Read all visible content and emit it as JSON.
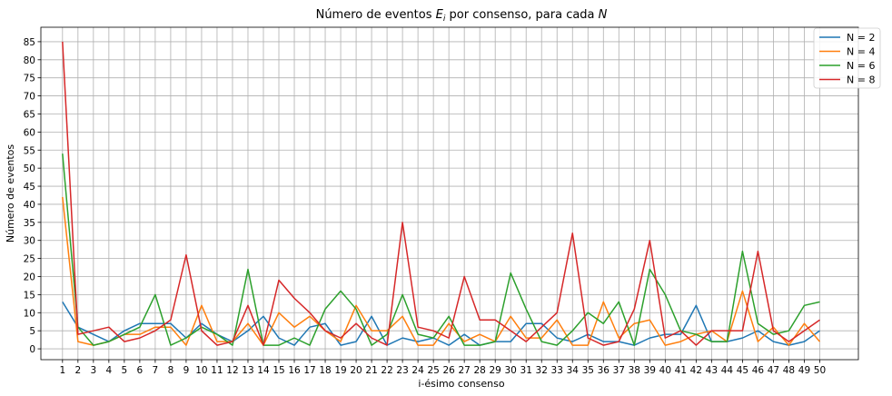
{
  "chart_data": {
    "type": "line",
    "title_parts": [
      "Número de eventos ",
      "E",
      "i",
      " por consenso, para cada ",
      "N"
    ],
    "xlabel": "i-ésimo consenso",
    "ylabel": "Número de eventos",
    "x": [
      1,
      2,
      3,
      4,
      5,
      6,
      7,
      8,
      9,
      10,
      11,
      12,
      13,
      14,
      15,
      16,
      17,
      18,
      19,
      20,
      21,
      22,
      23,
      24,
      25,
      26,
      27,
      28,
      29,
      30,
      31,
      32,
      33,
      34,
      35,
      36,
      37,
      38,
      39,
      40,
      41,
      42,
      43,
      44,
      45,
      46,
      47,
      48,
      49,
      50
    ],
    "xlim": [
      -0.4,
      52.5
    ],
    "ylim": [
      -3,
      89
    ],
    "yticks": [
      0,
      5,
      10,
      15,
      20,
      25,
      30,
      35,
      40,
      45,
      50,
      55,
      60,
      65,
      70,
      75,
      80,
      85
    ],
    "grid": true,
    "legend_position": "top-right",
    "series": [
      {
        "name": "N = 2",
        "color": "#1f77b4",
        "values": [
          13,
          6,
          4,
          2,
          5,
          7,
          7,
          7,
          3,
          7,
          4,
          2,
          5,
          9,
          3,
          1,
          6,
          7,
          1,
          2,
          9,
          1,
          3,
          2,
          3,
          1,
          4,
          1,
          2,
          2,
          7,
          7,
          3,
          2,
          4,
          2,
          2,
          1,
          3,
          4,
          4,
          12,
          2,
          2,
          3,
          5,
          2,
          1,
          2,
          5
        ]
      },
      {
        "name": "N = 4",
        "color": "#ff7f0e",
        "values": [
          42,
          2,
          1,
          2,
          4,
          4,
          6,
          6,
          1,
          12,
          2,
          2,
          7,
          1,
          10,
          6,
          9,
          5,
          2,
          12,
          5,
          5,
          9,
          1,
          1,
          7,
          2,
          4,
          2,
          9,
          3,
          3,
          8,
          1,
          1,
          13,
          3,
          7,
          8,
          1,
          2,
          4,
          5,
          2,
          16,
          2,
          6,
          1,
          7,
          2
        ]
      },
      {
        "name": "N = 6",
        "color": "#2ca02c",
        "values": [
          54,
          6,
          1,
          2,
          4,
          6,
          15,
          1,
          3,
          6,
          4,
          1,
          22,
          1,
          1,
          3,
          1,
          11,
          16,
          11,
          1,
          4,
          15,
          4,
          3,
          9,
          1,
          1,
          2,
          21,
          11,
          2,
          1,
          5,
          10,
          7,
          13,
          1,
          22,
          15,
          5,
          4,
          2,
          2,
          27,
          7,
          4,
          5,
          12,
          13
        ]
      },
      {
        "name": "N = 8",
        "color": "#d62728",
        "values": [
          85,
          4,
          5,
          6,
          2,
          3,
          5,
          8,
          26,
          5,
          1,
          2,
          12,
          1,
          19,
          14,
          10,
          5,
          3,
          7,
          3,
          1,
          35,
          6,
          5,
          3,
          20,
          8,
          8,
          5,
          2,
          6,
          10,
          32,
          3,
          1,
          2,
          11,
          30,
          3,
          5,
          1,
          5,
          5,
          5,
          27,
          5,
          2,
          5,
          8
        ]
      }
    ]
  }
}
